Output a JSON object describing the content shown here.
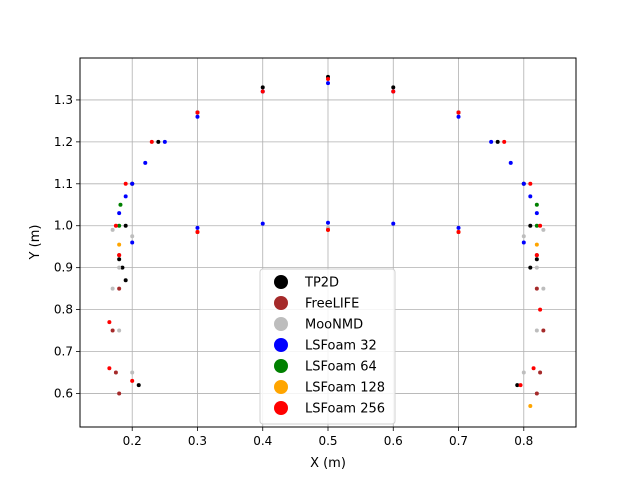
{
  "chart_data": {
    "type": "scatter",
    "title": "",
    "xlabel": "X (m)",
    "ylabel": "Y (m)",
    "xlim": [
      0.12,
      0.88
    ],
    "ylim": [
      0.52,
      1.4
    ],
    "xticks": [
      0.2,
      0.3,
      0.4,
      0.5,
      0.6,
      0.7,
      0.8
    ],
    "xtick_labels": [
      "0.2",
      "0.3",
      "0.4",
      "0.5",
      "0.6",
      "0.7",
      "0.8"
    ],
    "yticks": [
      0.6,
      0.7,
      0.8,
      0.9,
      1.0,
      1.1,
      1.2,
      1.3
    ],
    "ytick_labels": [
      "0.6",
      "0.7",
      "0.8",
      "0.9",
      "1.0",
      "1.1",
      "1.2",
      "1.3"
    ],
    "grid": true,
    "legend_position": "lower-center",
    "series": [
      {
        "name": "TP2D",
        "color": "#000000",
        "points": [
          [
            0.18,
            0.92
          ],
          [
            0.19,
            1.0
          ],
          [
            0.2,
            1.1
          ],
          [
            0.24,
            1.2
          ],
          [
            0.3,
            1.27
          ],
          [
            0.4,
            1.33
          ],
          [
            0.5,
            1.355
          ],
          [
            0.6,
            1.33
          ],
          [
            0.7,
            1.27
          ],
          [
            0.76,
            1.2
          ],
          [
            0.8,
            1.1
          ],
          [
            0.81,
            1.0
          ],
          [
            0.82,
            0.92
          ],
          [
            0.185,
            0.9
          ],
          [
            0.19,
            0.87
          ],
          [
            0.21,
            0.62
          ],
          [
            0.79,
            0.62
          ],
          [
            0.81,
            0.9
          ]
        ]
      },
      {
        "name": "FreeLIFE",
        "color": "#a52a2a",
        "points": [
          [
            0.18,
            0.93
          ],
          [
            0.3,
            0.985
          ],
          [
            0.5,
            0.99
          ],
          [
            0.7,
            0.985
          ],
          [
            0.82,
            0.93
          ],
          [
            0.18,
            0.85
          ],
          [
            0.17,
            0.75
          ],
          [
            0.175,
            0.65
          ],
          [
            0.18,
            0.6
          ],
          [
            0.82,
            0.85
          ],
          [
            0.83,
            0.75
          ],
          [
            0.825,
            0.65
          ],
          [
            0.82,
            0.6
          ]
        ]
      },
      {
        "name": "MooNMD",
        "color": "#bdbdbd",
        "points": [
          [
            0.17,
            0.99
          ],
          [
            0.2,
            0.975
          ],
          [
            0.3,
            0.985
          ],
          [
            0.5,
            0.995
          ],
          [
            0.7,
            0.985
          ],
          [
            0.8,
            0.975
          ],
          [
            0.83,
            0.99
          ],
          [
            0.18,
            0.9
          ],
          [
            0.17,
            0.85
          ],
          [
            0.18,
            0.75
          ],
          [
            0.2,
            0.65
          ],
          [
            0.82,
            0.9
          ],
          [
            0.83,
            0.85
          ],
          [
            0.82,
            0.75
          ],
          [
            0.8,
            0.65
          ]
        ]
      },
      {
        "name": "LSFoam 32",
        "color": "#0000ff",
        "points": [
          [
            0.18,
            1.03
          ],
          [
            0.19,
            1.07
          ],
          [
            0.2,
            1.1
          ],
          [
            0.22,
            1.15
          ],
          [
            0.25,
            1.2
          ],
          [
            0.3,
            1.26
          ],
          [
            0.4,
            1.32
          ],
          [
            0.5,
            1.34
          ],
          [
            0.6,
            1.32
          ],
          [
            0.7,
            1.26
          ],
          [
            0.75,
            1.2
          ],
          [
            0.78,
            1.15
          ],
          [
            0.8,
            1.1
          ],
          [
            0.81,
            1.07
          ],
          [
            0.82,
            1.03
          ],
          [
            0.2,
            0.96
          ],
          [
            0.3,
            0.995
          ],
          [
            0.4,
            1.005
          ],
          [
            0.5,
            1.007
          ],
          [
            0.6,
            1.005
          ],
          [
            0.7,
            0.995
          ],
          [
            0.8,
            0.96
          ]
        ]
      },
      {
        "name": "LSFoam 64",
        "color": "#008000",
        "points": [
          [
            0.18,
            1.0
          ],
          [
            0.182,
            1.05
          ],
          [
            0.82,
            1.05
          ],
          [
            0.82,
            1.0
          ]
        ]
      },
      {
        "name": "LSFoam 128",
        "color": "#ffa500",
        "points": [
          [
            0.18,
            0.955
          ],
          [
            0.3,
            0.985
          ],
          [
            0.5,
            0.99
          ],
          [
            0.7,
            0.985
          ],
          [
            0.82,
            0.955
          ],
          [
            0.81,
            0.57
          ]
        ]
      },
      {
        "name": "LSFoam 256",
        "color": "#ff0000",
        "points": [
          [
            0.18,
            0.93
          ],
          [
            0.175,
            1.0
          ],
          [
            0.19,
            1.1
          ],
          [
            0.23,
            1.2
          ],
          [
            0.3,
            1.27
          ],
          [
            0.4,
            1.32
          ],
          [
            0.5,
            1.35
          ],
          [
            0.6,
            1.32
          ],
          [
            0.7,
            1.27
          ],
          [
            0.77,
            1.2
          ],
          [
            0.81,
            1.1
          ],
          [
            0.825,
            1.0
          ],
          [
            0.82,
            0.93
          ],
          [
            0.3,
            0.985
          ],
          [
            0.5,
            0.99
          ],
          [
            0.7,
            0.985
          ],
          [
            0.165,
            0.77
          ],
          [
            0.2,
            0.63
          ],
          [
            0.795,
            0.62
          ],
          [
            0.825,
            0.8
          ],
          [
            0.815,
            0.66
          ],
          [
            0.165,
            0.66
          ]
        ]
      }
    ]
  }
}
